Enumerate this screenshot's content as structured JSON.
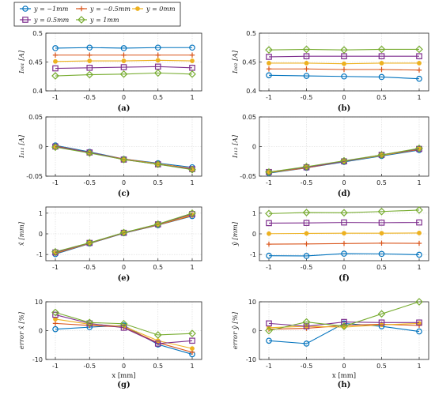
{
  "legend": {
    "entries": [
      {
        "label": "y = −1mm",
        "color": "#0072BD",
        "marker": "circle"
      },
      {
        "label": "y = −0.5mm",
        "color": "#D95319",
        "marker": "plus"
      },
      {
        "label": "y = 0mm",
        "color": "#EDB120",
        "marker": "star"
      },
      {
        "label": "y = 0.5mm",
        "color": "#7E2F8E",
        "marker": "square"
      },
      {
        "label": "y = 1mm",
        "color": "#77AC30",
        "marker": "diamond"
      }
    ]
  },
  "chart_data": [
    {
      "id": "a",
      "type": "line",
      "panel_label": "(a)",
      "ylabel": "I₀₀₁ [A]",
      "xlabel": "",
      "x": [
        -1,
        -0.5,
        0,
        0.5,
        1
      ],
      "xticks": [
        "-1",
        "-0.5",
        "0",
        "0.5",
        "1"
      ],
      "ylim": [
        0.4,
        0.5
      ],
      "yticks": [
        0.4,
        0.45,
        0.5
      ],
      "yticklabels": [
        "0.4",
        "0.45",
        "0.5"
      ],
      "grid": true,
      "series": [
        {
          "name": "y = −1mm",
          "values": [
            0.474,
            0.475,
            0.474,
            0.475,
            0.475
          ]
        },
        {
          "name": "y = −0.5mm",
          "values": [
            0.462,
            0.462,
            0.462,
            0.462,
            0.462
          ]
        },
        {
          "name": "y = 0mm",
          "values": [
            0.451,
            0.452,
            0.452,
            0.453,
            0.452
          ]
        },
        {
          "name": "y = 0.5mm",
          "values": [
            0.439,
            0.44,
            0.441,
            0.442,
            0.44
          ]
        },
        {
          "name": "y = 1mm",
          "values": [
            0.426,
            0.428,
            0.429,
            0.431,
            0.429
          ]
        }
      ]
    },
    {
      "id": "b",
      "type": "line",
      "panel_label": "(b)",
      "ylabel": "I₀₀₂ [A]",
      "xlabel": "",
      "x": [
        -1,
        -0.5,
        0,
        0.5,
        1
      ],
      "xticks": [
        "-1",
        "-0.5",
        "0",
        "0.5",
        "1"
      ],
      "ylim": [
        0.4,
        0.5
      ],
      "yticks": [
        0.4,
        0.45,
        0.5
      ],
      "yticklabels": [
        "0.4",
        "0.45",
        "0.5"
      ],
      "grid": true,
      "series": [
        {
          "name": "y = −1mm",
          "values": [
            0.427,
            0.426,
            0.425,
            0.424,
            0.421
          ]
        },
        {
          "name": "y = −0.5mm",
          "values": [
            0.438,
            0.438,
            0.437,
            0.437,
            0.436
          ]
        },
        {
          "name": "y = 0mm",
          "values": [
            0.448,
            0.448,
            0.447,
            0.448,
            0.448
          ]
        },
        {
          "name": "y = 0.5mm",
          "values": [
            0.459,
            0.46,
            0.46,
            0.46,
            0.46
          ]
        },
        {
          "name": "y = 1mm",
          "values": [
            0.471,
            0.472,
            0.471,
            0.472,
            0.472
          ]
        }
      ]
    },
    {
      "id": "c",
      "type": "line",
      "panel_label": "(c)",
      "ylabel": "I₁₁₁ [A]",
      "xlabel": "",
      "x": [
        -1,
        -0.5,
        0,
        0.5,
        1
      ],
      "xticks": [
        "-1",
        "-0.5",
        "0",
        "0.5",
        "1"
      ],
      "ylim": [
        -0.05,
        0.05
      ],
      "yticks": [
        -0.05,
        0,
        0.05
      ],
      "yticklabels": [
        "-0.05",
        "0",
        "0.05"
      ],
      "grid": true,
      "series": [
        {
          "name": "y = −1mm",
          "values": [
            0.002,
            -0.009,
            -0.021,
            -0.028,
            -0.035
          ]
        },
        {
          "name": "y = −0.5mm",
          "values": [
            0.001,
            -0.01,
            -0.021,
            -0.029,
            -0.037
          ]
        },
        {
          "name": "y = 0mm",
          "values": [
            0.0,
            -0.01,
            -0.022,
            -0.029,
            -0.038
          ]
        },
        {
          "name": "y = 0.5mm",
          "values": [
            0.0,
            -0.01,
            -0.022,
            -0.03,
            -0.038
          ]
        },
        {
          "name": "y = 1mm",
          "values": [
            -0.001,
            -0.011,
            -0.022,
            -0.03,
            -0.039
          ]
        }
      ]
    },
    {
      "id": "d",
      "type": "line",
      "panel_label": "(d)",
      "ylabel": "I₁₁₂ [A]",
      "xlabel": "",
      "x": [
        -1,
        -0.5,
        0,
        0.5,
        1
      ],
      "xticks": [
        "-1",
        "-0.5",
        "0",
        "0.5",
        "1"
      ],
      "ylim": [
        -0.05,
        0.05
      ],
      "yticks": [
        -0.05,
        0,
        0.05
      ],
      "yticklabels": [
        "-0.05",
        "0",
        "0.05"
      ],
      "grid": true,
      "series": [
        {
          "name": "y = −1mm",
          "values": [
            -0.045,
            -0.036,
            -0.026,
            -0.016,
            -0.006
          ]
        },
        {
          "name": "y = −0.5mm",
          "values": [
            -0.044,
            -0.036,
            -0.025,
            -0.015,
            -0.005
          ]
        },
        {
          "name": "y = 0mm",
          "values": [
            -0.044,
            -0.035,
            -0.025,
            -0.015,
            -0.004
          ]
        },
        {
          "name": "y = 0.5mm",
          "values": [
            -0.043,
            -0.035,
            -0.025,
            -0.014,
            -0.004
          ]
        },
        {
          "name": "y = 1mm",
          "values": [
            -0.043,
            -0.034,
            -0.024,
            -0.014,
            -0.003
          ]
        }
      ]
    },
    {
      "id": "e",
      "type": "line",
      "panel_label": "(e)",
      "ylabel": "x̂ [mm]",
      "xlabel": "",
      "x": [
        -1,
        -0.5,
        0,
        0.5,
        1
      ],
      "xticks": [
        "-1",
        "-0.5",
        "0",
        "0.5",
        "1"
      ],
      "ylim": [
        -1.3,
        1.3
      ],
      "yticks": [
        -1,
        0,
        1
      ],
      "yticklabels": [
        "-1",
        "0",
        "1"
      ],
      "grid": true,
      "series": [
        {
          "name": "y = −1mm",
          "values": [
            -0.98,
            -0.47,
            0.03,
            0.42,
            0.86
          ]
        },
        {
          "name": "y = −0.5mm",
          "values": [
            -0.95,
            -0.46,
            0.04,
            0.43,
            0.88
          ]
        },
        {
          "name": "y = 0mm",
          "values": [
            -0.92,
            -0.45,
            0.05,
            0.45,
            0.92
          ]
        },
        {
          "name": "y = 0.5mm",
          "values": [
            -0.9,
            -0.44,
            0.05,
            0.46,
            0.96
          ]
        },
        {
          "name": "y = 1mm",
          "values": [
            -0.87,
            -0.43,
            0.06,
            0.47,
            1.0
          ]
        }
      ]
    },
    {
      "id": "f",
      "type": "line",
      "panel_label": "(f)",
      "ylabel": "ŷ [mm]",
      "xlabel": "",
      "x": [
        -1,
        -0.5,
        0,
        0.5,
        1
      ],
      "xticks": [
        "-1",
        "-0.5",
        "0",
        "0.5",
        "1"
      ],
      "ylim": [
        -1.3,
        1.3
      ],
      "yticks": [
        -1,
        0,
        1
      ],
      "yticklabels": [
        "-1",
        "0",
        "1"
      ],
      "grid": true,
      "series": [
        {
          "name": "y = −1mm",
          "values": [
            -1.06,
            -1.07,
            -0.96,
            -0.97,
            -1.01
          ]
        },
        {
          "name": "y = −0.5mm",
          "values": [
            -0.5,
            -0.49,
            -0.47,
            -0.45,
            -0.46
          ]
        },
        {
          "name": "y = 0mm",
          "values": [
            0.01,
            0.02,
            0.03,
            0.03,
            0.04
          ]
        },
        {
          "name": "y = 0.5mm",
          "values": [
            0.52,
            0.53,
            0.55,
            0.54,
            0.55
          ]
        },
        {
          "name": "y = 1mm",
          "values": [
            0.98,
            1.03,
            1.02,
            1.08,
            1.15
          ]
        }
      ]
    },
    {
      "id": "g",
      "type": "line",
      "panel_label": "(g)",
      "ylabel": "error x̂ [%]",
      "xlabel": "x [mm]",
      "x": [
        -1,
        -0.5,
        0,
        0.5,
        1
      ],
      "xticks": [
        "-1",
        "-0.5",
        "0",
        "0.5",
        "1"
      ],
      "ylim": [
        -10,
        10
      ],
      "yticks": [
        -10,
        0,
        10
      ],
      "yticklabels": [
        "-10",
        "0",
        "10"
      ],
      "grid": true,
      "series": [
        {
          "name": "y = −1mm",
          "values": [
            0.5,
            1.2,
            1.8,
            -4.8,
            -8.2
          ]
        },
        {
          "name": "y = −0.5mm",
          "values": [
            2.5,
            1.8,
            1.2,
            -4.2,
            -7.5
          ]
        },
        {
          "name": "y = 0mm",
          "values": [
            4.0,
            2.2,
            1.5,
            -3.5,
            -6.2
          ]
        },
        {
          "name": "y = 0.5mm",
          "values": [
            5.5,
            2.5,
            1.0,
            -4.5,
            -3.5
          ]
        },
        {
          "name": "y = 1mm",
          "values": [
            6.3,
            2.8,
            2.4,
            -1.5,
            -1.0
          ]
        }
      ]
    },
    {
      "id": "h",
      "type": "line",
      "panel_label": "(h)",
      "ylabel": "error ŷ [%]",
      "xlabel": "x [mm]",
      "x": [
        -1,
        -0.5,
        0,
        0.5,
        1
      ],
      "xticks": [
        "-1",
        "-0.5",
        "0",
        "0.5",
        "1"
      ],
      "ylim": [
        -10,
        10
      ],
      "yticks": [
        -10,
        0,
        10
      ],
      "yticklabels": [
        "-10",
        "0",
        "10"
      ],
      "grid": true,
      "series": [
        {
          "name": "y = −1mm",
          "values": [
            -3.5,
            -4.5,
            2.5,
            1.5,
            -0.3
          ]
        },
        {
          "name": "y = −0.5mm",
          "values": [
            0.5,
            0.8,
            1.8,
            2.2,
            1.8
          ]
        },
        {
          "name": "y = 0mm",
          "values": [
            1.0,
            1.5,
            1.2,
            2.0,
            2.5
          ]
        },
        {
          "name": "y = 0.5mm",
          "values": [
            2.5,
            1.5,
            3.0,
            2.8,
            2.8
          ]
        },
        {
          "name": "y = 1mm",
          "values": [
            0.0,
            3.0,
            1.5,
            5.8,
            10.0
          ]
        }
      ]
    }
  ]
}
